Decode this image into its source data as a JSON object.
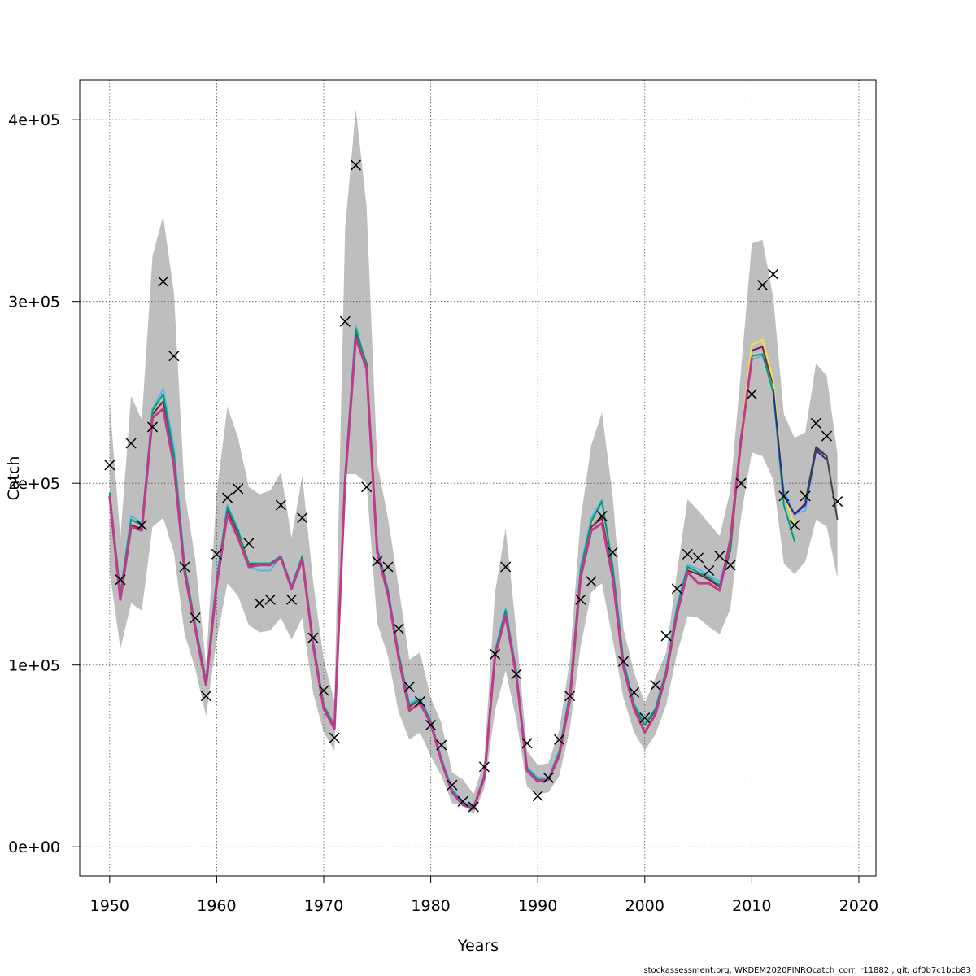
{
  "chart_data": {
    "type": "line",
    "xlabel": "Years",
    "ylabel": "Catch",
    "xlim": [
      1947.2,
      2021.6
    ],
    "ylim": [
      -16000,
      422000
    ],
    "x_ticks": [
      1950,
      1960,
      1970,
      1980,
      1990,
      2000,
      2010,
      2020
    ],
    "y_ticks": [
      0,
      100000,
      200000,
      300000,
      400000
    ],
    "y_tick_labels": [
      "0e+00",
      "1e+05",
      "2e+05",
      "3e+05",
      "4e+05"
    ],
    "grid": true,
    "band_color": "#bebebe",
    "observed": {
      "marker": "x",
      "color": "#000000",
      "x": [
        1950,
        1951,
        1952,
        1953,
        1954,
        1955,
        1956,
        1957,
        1958,
        1959,
        1960,
        1961,
        1962,
        1963,
        1964,
        1965,
        1966,
        1967,
        1968,
        1969,
        1970,
        1971,
        1972,
        1973,
        1974,
        1975,
        1976,
        1977,
        1978,
        1979,
        1980,
        1981,
        1982,
        1983,
        1984,
        1985,
        1986,
        1987,
        1988,
        1989,
        1990,
        1991,
        1992,
        1993,
        1994,
        1995,
        1996,
        1997,
        1998,
        1999,
        2000,
        2001,
        2002,
        2003,
        2004,
        2005,
        2006,
        2007,
        2008,
        2009,
        2010,
        2011,
        2012,
        2013,
        2014,
        2015,
        2016,
        2017,
        2018
      ],
      "y": [
        210000,
        147000,
        222000,
        177000,
        231000,
        311000,
        270000,
        154000,
        126000,
        83000,
        161000,
        192000,
        197000,
        167000,
        134000,
        136000,
        188000,
        136000,
        181000,
        115000,
        86000,
        60000,
        289000,
        375000,
        198000,
        157000,
        154000,
        120000,
        88000,
        80000,
        67000,
        56000,
        34000,
        25000,
        22000,
        44000,
        106000,
        154000,
        95000,
        57000,
        28000,
        38000,
        59000,
        83000,
        136000,
        146000,
        182000,
        162000,
        102000,
        85000,
        71000,
        89000,
        116000,
        142000,
        161000,
        159000,
        152000,
        160000,
        155000,
        200000,
        249000,
        309000,
        315000,
        193000,
        177000,
        193000,
        233000,
        226000,
        190000
      ]
    },
    "band": {
      "x": [
        1950,
        1951,
        1952,
        1953,
        1954,
        1955,
        1956,
        1957,
        1958,
        1959,
        1960,
        1961,
        1962,
        1963,
        1964,
        1965,
        1966,
        1967,
        1968,
        1969,
        1970,
        1971,
        1972,
        1973,
        1974,
        1975,
        1976,
        1977,
        1978,
        1979,
        1980,
        1981,
        1982,
        1983,
        1984,
        1985,
        1986,
        1987,
        1988,
        1989,
        1990,
        1991,
        1992,
        1993,
        1994,
        1995,
        1996,
        1997,
        1998,
        1999,
        2000,
        2001,
        2002,
        2003,
        2004,
        2005,
        2006,
        2007,
        2008,
        2009,
        2010,
        2011,
        2012,
        2013,
        2014,
        2015,
        2016,
        2017,
        2018
      ],
      "upper": [
        245000,
        170000,
        248000,
        235000,
        325000,
        347000,
        305000,
        195000,
        158000,
        100000,
        195000,
        242000,
        225000,
        198000,
        194000,
        196000,
        206000,
        170000,
        204000,
        146000,
        103000,
        80000,
        340000,
        406000,
        352000,
        211000,
        181000,
        143000,
        103000,
        107000,
        82000,
        68000,
        41000,
        37000,
        29000,
        47000,
        140000,
        175000,
        118000,
        53000,
        45000,
        46000,
        64000,
        103000,
        180000,
        221000,
        239000,
        193000,
        120000,
        96000,
        79000,
        93000,
        107000,
        151000,
        191000,
        185000,
        178000,
        171000,
        196000,
        263000,
        332000,
        334000,
        302000,
        238000,
        225000,
        228000,
        266000,
        259000,
        216000
      ],
      "lower": [
        152000,
        109000,
        134000,
        130000,
        176000,
        181000,
        162000,
        117000,
        98000,
        72000,
        114000,
        145000,
        138000,
        122000,
        118000,
        119000,
        126000,
        114000,
        126000,
        85000,
        63000,
        53000,
        205000,
        205000,
        200000,
        123000,
        105000,
        74000,
        59000,
        63000,
        50000,
        39000,
        24000,
        23000,
        18000,
        32000,
        75000,
        97000,
        70000,
        33000,
        29000,
        30000,
        39000,
        65000,
        110000,
        140000,
        145000,
        114000,
        82000,
        63000,
        53000,
        62000,
        78000,
        106000,
        127000,
        126000,
        121000,
        117000,
        131000,
        182000,
        217000,
        215000,
        202000,
        156000,
        150000,
        157000,
        180000,
        176000,
        148000
      ]
    },
    "series": [
      {
        "color": "#7b1f3a",
        "x": [
          1950,
          1951,
          1952,
          1953,
          1954,
          1955,
          1956,
          1957,
          1958,
          1959,
          1960,
          1961,
          1962,
          1963,
          1964,
          1965,
          1966,
          1967,
          1968,
          1969,
          1970,
          1971,
          1972,
          1973,
          1974,
          1975,
          1976,
          1977,
          1978,
          1979,
          1980,
          1981,
          1982,
          1983,
          1984,
          1985,
          1986,
          1987,
          1988,
          1989,
          1990,
          1991,
          1992,
          1993,
          1994,
          1995,
          1996,
          1997,
          1998,
          1999,
          2000,
          2001,
          2002,
          2003,
          2004,
          2005,
          2006,
          2007,
          2008,
          2009,
          2010,
          2011,
          2012,
          2013,
          2014,
          2015,
          2016,
          2017
        ],
        "y": [
          194000,
          138000,
          177000,
          175000,
          238000,
          245000,
          213000,
          153000,
          121000,
          90000,
          145000,
          185000,
          172000,
          155000,
          155000,
          155000,
          159000,
          143000,
          159000,
          112000,
          77000,
          66000,
          202000,
          282000,
          266000,
          163000,
          140000,
          105000,
          77000,
          81000,
          69000,
          48000,
          31000,
          24000,
          22000,
          39000,
          106000,
          128000,
          95000,
          43000,
          37000,
          37000,
          51000,
          82000,
          150000,
          176000,
          181000,
          150000,
          100000,
          77000,
          67000,
          75000,
          96000,
          130000,
          152000,
          150000,
          147000,
          143000,
          163000,
          225000,
          273000,
          275000,
          253000,
          193000,
          183000,
          189000,
          219000,
          215000
        ]
      },
      {
        "color": "#56b4e9",
        "x": [
          1950,
          1951,
          1952,
          1953,
          1954,
          1955,
          1956,
          1957,
          1958,
          1959,
          1960,
          1961,
          1962,
          1963,
          1964,
          1965,
          1966,
          1967,
          1968,
          1969,
          1970,
          1971,
          1972,
          1973,
          1974,
          1975,
          1976,
          1977,
          1978,
          1979,
          1980,
          1981,
          1982,
          1983,
          1984,
          1985,
          1986,
          1987,
          1988,
          1989,
          1990,
          1991,
          1992,
          1993,
          1994,
          1995,
          1996,
          1997,
          1998,
          1999,
          2000,
          2001,
          2002,
          2003,
          2004,
          2005,
          2006,
          2007,
          2008,
          2009,
          2010,
          2011,
          2012,
          2013,
          2014,
          2015,
          2016
        ],
        "y": [
          195000,
          140000,
          182000,
          178000,
          241000,
          252000,
          220000,
          155000,
          123000,
          92000,
          148000,
          188000,
          175000,
          154000,
          152000,
          152000,
          160000,
          144000,
          160000,
          114000,
          78000,
          67000,
          205000,
          287000,
          264000,
          165000,
          142000,
          107000,
          79000,
          82000,
          70000,
          49000,
          32000,
          25000,
          22000,
          40000,
          108000,
          131000,
          97000,
          44000,
          38000,
          38000,
          53000,
          85000,
          154000,
          181000,
          191000,
          155000,
          103000,
          79000,
          68000,
          76000,
          98000,
          133000,
          155000,
          153000,
          149000,
          146000,
          166000,
          228000,
          268000,
          270000,
          252000,
          196000,
          183000,
          185000,
          218000
        ]
      },
      {
        "color": "#009e73",
        "x": [
          1950,
          1951,
          1952,
          1953,
          1954,
          1955,
          1956,
          1957,
          1958,
          1959,
          1960,
          1961,
          1962,
          1963,
          1964,
          1965,
          1966,
          1967,
          1968,
          1969,
          1970,
          1971,
          1972,
          1973,
          1974,
          1975,
          1976,
          1977,
          1978,
          1979,
          1980,
          1981,
          1982,
          1983,
          1984,
          1985,
          1986,
          1987,
          1988,
          1989,
          1990,
          1991,
          1992,
          1993,
          1994,
          1995,
          1996,
          1997,
          1998,
          1999,
          2000,
          2001,
          2002,
          2003,
          2004,
          2005,
          2006,
          2007,
          2008,
          2009,
          2010,
          2011,
          2012,
          2013,
          2014
        ],
        "y": [
          195000,
          139000,
          180000,
          177000,
          240000,
          249000,
          216000,
          154000,
          122000,
          91000,
          147000,
          187000,
          174000,
          156000,
          156000,
          156000,
          160000,
          143000,
          160000,
          113000,
          78000,
          66000,
          204000,
          285000,
          265000,
          164000,
          141000,
          106000,
          78000,
          81000,
          69000,
          48000,
          31000,
          24000,
          22000,
          39000,
          107000,
          130000,
          96000,
          43000,
          37000,
          37000,
          52000,
          84000,
          152000,
          179000,
          190000,
          154000,
          102000,
          78000,
          67000,
          76000,
          97000,
          131000,
          154000,
          151000,
          148000,
          144000,
          164000,
          226000,
          270000,
          271000,
          250000,
          188000,
          168000
        ]
      },
      {
        "color": "#f0e442",
        "x": [
          2009,
          2010,
          2011,
          2012,
          2013,
          2014
        ],
        "y": [
          227000,
          276000,
          279000,
          257000,
          194000,
          177000
        ]
      },
      {
        "color": "#2b2b9f",
        "x": [
          2012,
          2013,
          2014,
          2015,
          2016,
          2017
        ],
        "y": [
          252000,
          193000,
          183000,
          188000,
          218000,
          213000
        ]
      },
      {
        "color": "#444444",
        "x": [
          2015,
          2016,
          2017,
          2018
        ],
        "y": [
          190000,
          220000,
          215000,
          180000
        ]
      },
      {
        "color": "#c0398a",
        "x": [
          1950,
          1951,
          1952,
          1953,
          1954,
          1955,
          1956,
          1957,
          1958,
          1959,
          1960,
          1961,
          1962,
          1963,
          1964,
          1965,
          1966,
          1967,
          1968,
          1969,
          1970,
          1971,
          1972,
          1973,
          1974,
          1975,
          1976,
          1977,
          1978,
          1979,
          1980,
          1981,
          1982,
          1983,
          1984,
          1985,
          1986,
          1987,
          1988,
          1989,
          1990,
          1991,
          1992,
          1993,
          1994,
          1995,
          1996,
          1997,
          1998,
          1999,
          2000,
          2001,
          2002,
          2003,
          2004,
          2005,
          2006,
          2007,
          2008,
          2009,
          2010
        ],
        "y": [
          193000,
          136000,
          176000,
          174000,
          236000,
          241000,
          210000,
          151000,
          120000,
          89000,
          144000,
          183000,
          170000,
          154000,
          155000,
          155000,
          159000,
          142000,
          158000,
          111000,
          76000,
          65000,
          201000,
          280000,
          263000,
          162000,
          139000,
          104000,
          75000,
          79000,
          68000,
          47000,
          30000,
          23000,
          21000,
          38000,
          105000,
          127000,
          94000,
          42000,
          36000,
          37000,
          50000,
          81000,
          148000,
          174000,
          178000,
          148000,
          99000,
          76000,
          63000,
          73000,
          95000,
          128000,
          151000,
          145000,
          145000,
          141000,
          169000,
          224000,
          269000
        ]
      }
    ]
  },
  "footer": {
    "credit": "stockassessment.org, WKDEM2020PINROcatch_corr, r11882 , git: df0b7c1bcb83"
  }
}
